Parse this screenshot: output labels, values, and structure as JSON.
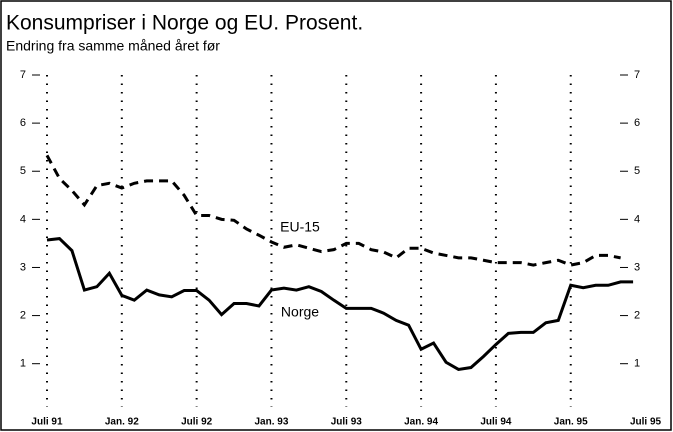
{
  "chart_data": {
    "type": "line",
    "title": "Konsumpriser i Norge og EU. Prosent.",
    "subtitle": "Endring fra samme måned året før",
    "x": [
      "1991-07",
      "1991-08",
      "1991-09",
      "1991-10",
      "1991-11",
      "1991-12",
      "1992-01",
      "1992-02",
      "1992-03",
      "1992-04",
      "1992-05",
      "1992-06",
      "1992-07",
      "1992-08",
      "1992-09",
      "1992-10",
      "1992-11",
      "1992-12",
      "1993-01",
      "1993-02",
      "1993-03",
      "1993-04",
      "1993-05",
      "1993-06",
      "1993-07",
      "1993-08",
      "1993-09",
      "1993-10",
      "1993-11",
      "1993-12",
      "1994-01",
      "1994-02",
      "1994-03",
      "1994-04",
      "1994-05",
      "1994-06",
      "1994-07",
      "1994-08",
      "1994-09",
      "1994-10",
      "1994-11",
      "1994-12",
      "1995-01",
      "1995-02",
      "1995-03",
      "1995-04",
      "1995-05",
      "1995-06"
    ],
    "series": [
      {
        "name": "Norge",
        "color": "#000000",
        "dash": false,
        "values": [
          3.57,
          3.6,
          3.35,
          2.53,
          2.6,
          2.88,
          2.42,
          2.32,
          2.53,
          2.43,
          2.39,
          2.52,
          2.52,
          2.32,
          2.02,
          2.25,
          2.25,
          2.2,
          2.53,
          2.57,
          2.53,
          2.6,
          2.5,
          2.32,
          2.15,
          2.15,
          2.15,
          2.05,
          1.9,
          1.8,
          1.3,
          1.43,
          1.03,
          0.88,
          0.92,
          1.15,
          1.4,
          1.63,
          1.65,
          1.65,
          1.85,
          1.9,
          2.63,
          2.58,
          2.63,
          2.63,
          2.7,
          2.7
        ]
      },
      {
        "name": "EU-15",
        "color": "#000000",
        "dash": true,
        "values": [
          5.33,
          4.85,
          4.6,
          4.3,
          4.7,
          4.75,
          4.65,
          4.75,
          4.8,
          4.8,
          4.8,
          4.5,
          4.08,
          4.08,
          4.0,
          3.98,
          3.8,
          3.67,
          3.53,
          3.42,
          3.47,
          3.4,
          3.33,
          3.37,
          3.5,
          3.5,
          3.37,
          3.32,
          3.2,
          3.4,
          3.4,
          3.3,
          3.25,
          3.2,
          3.2,
          3.15,
          3.1,
          3.1,
          3.1,
          3.05,
          3.1,
          3.15,
          3.05,
          3.1,
          3.25,
          3.25,
          3.2,
          null
        ]
      }
    ],
    "xticks": [
      {
        "value": "1991-07",
        "label": "Juli 91"
      },
      {
        "value": "1992-01",
        "label": "Jan. 92"
      },
      {
        "value": "1992-07",
        "label": "Juli 92"
      },
      {
        "value": "1993-01",
        "label": "Jan. 93"
      },
      {
        "value": "1993-07",
        "label": "Juli 93"
      },
      {
        "value": "1994-01",
        "label": "Jan. 94"
      },
      {
        "value": "1994-07",
        "label": "Juli 94"
      },
      {
        "value": "1995-01",
        "label": "Jan. 95"
      },
      {
        "value": "1995-07",
        "label": "Juli 95"
      }
    ],
    "ylim": [
      0.1,
      7
    ],
    "yticks": [
      1,
      2,
      3,
      4,
      5,
      6,
      7
    ]
  }
}
